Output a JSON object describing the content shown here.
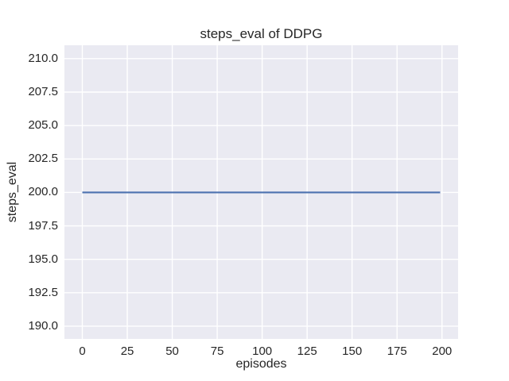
{
  "chart_data": {
    "type": "line",
    "title": "steps_eval of DDPG",
    "xlabel": "episodes",
    "ylabel": "steps_eval",
    "series": [
      {
        "name": "DDPG",
        "color": "#4c72b0",
        "x": [
          0,
          199
        ],
        "y": [
          200,
          200
        ]
      }
    ],
    "xticks": [
      0,
      25,
      50,
      75,
      100,
      125,
      150,
      175,
      200
    ],
    "yticks": [
      190,
      192.5,
      195,
      197.5,
      200,
      202.5,
      205,
      207.5,
      210
    ],
    "ytick_labels": [
      "190.0",
      "192.5",
      "195.0",
      "197.5",
      "200.0",
      "202.5",
      "205.0",
      "207.5",
      "210.0"
    ],
    "xlim": [
      -9.95,
      208.95
    ],
    "ylim": [
      189.05,
      211.0
    ],
    "grid": true,
    "legend_position": "none",
    "style": {
      "plot_background": "#eaeaf2",
      "grid_color": "#ffffff",
      "text_color": "#262626",
      "figure_background": "#ffffff"
    }
  }
}
